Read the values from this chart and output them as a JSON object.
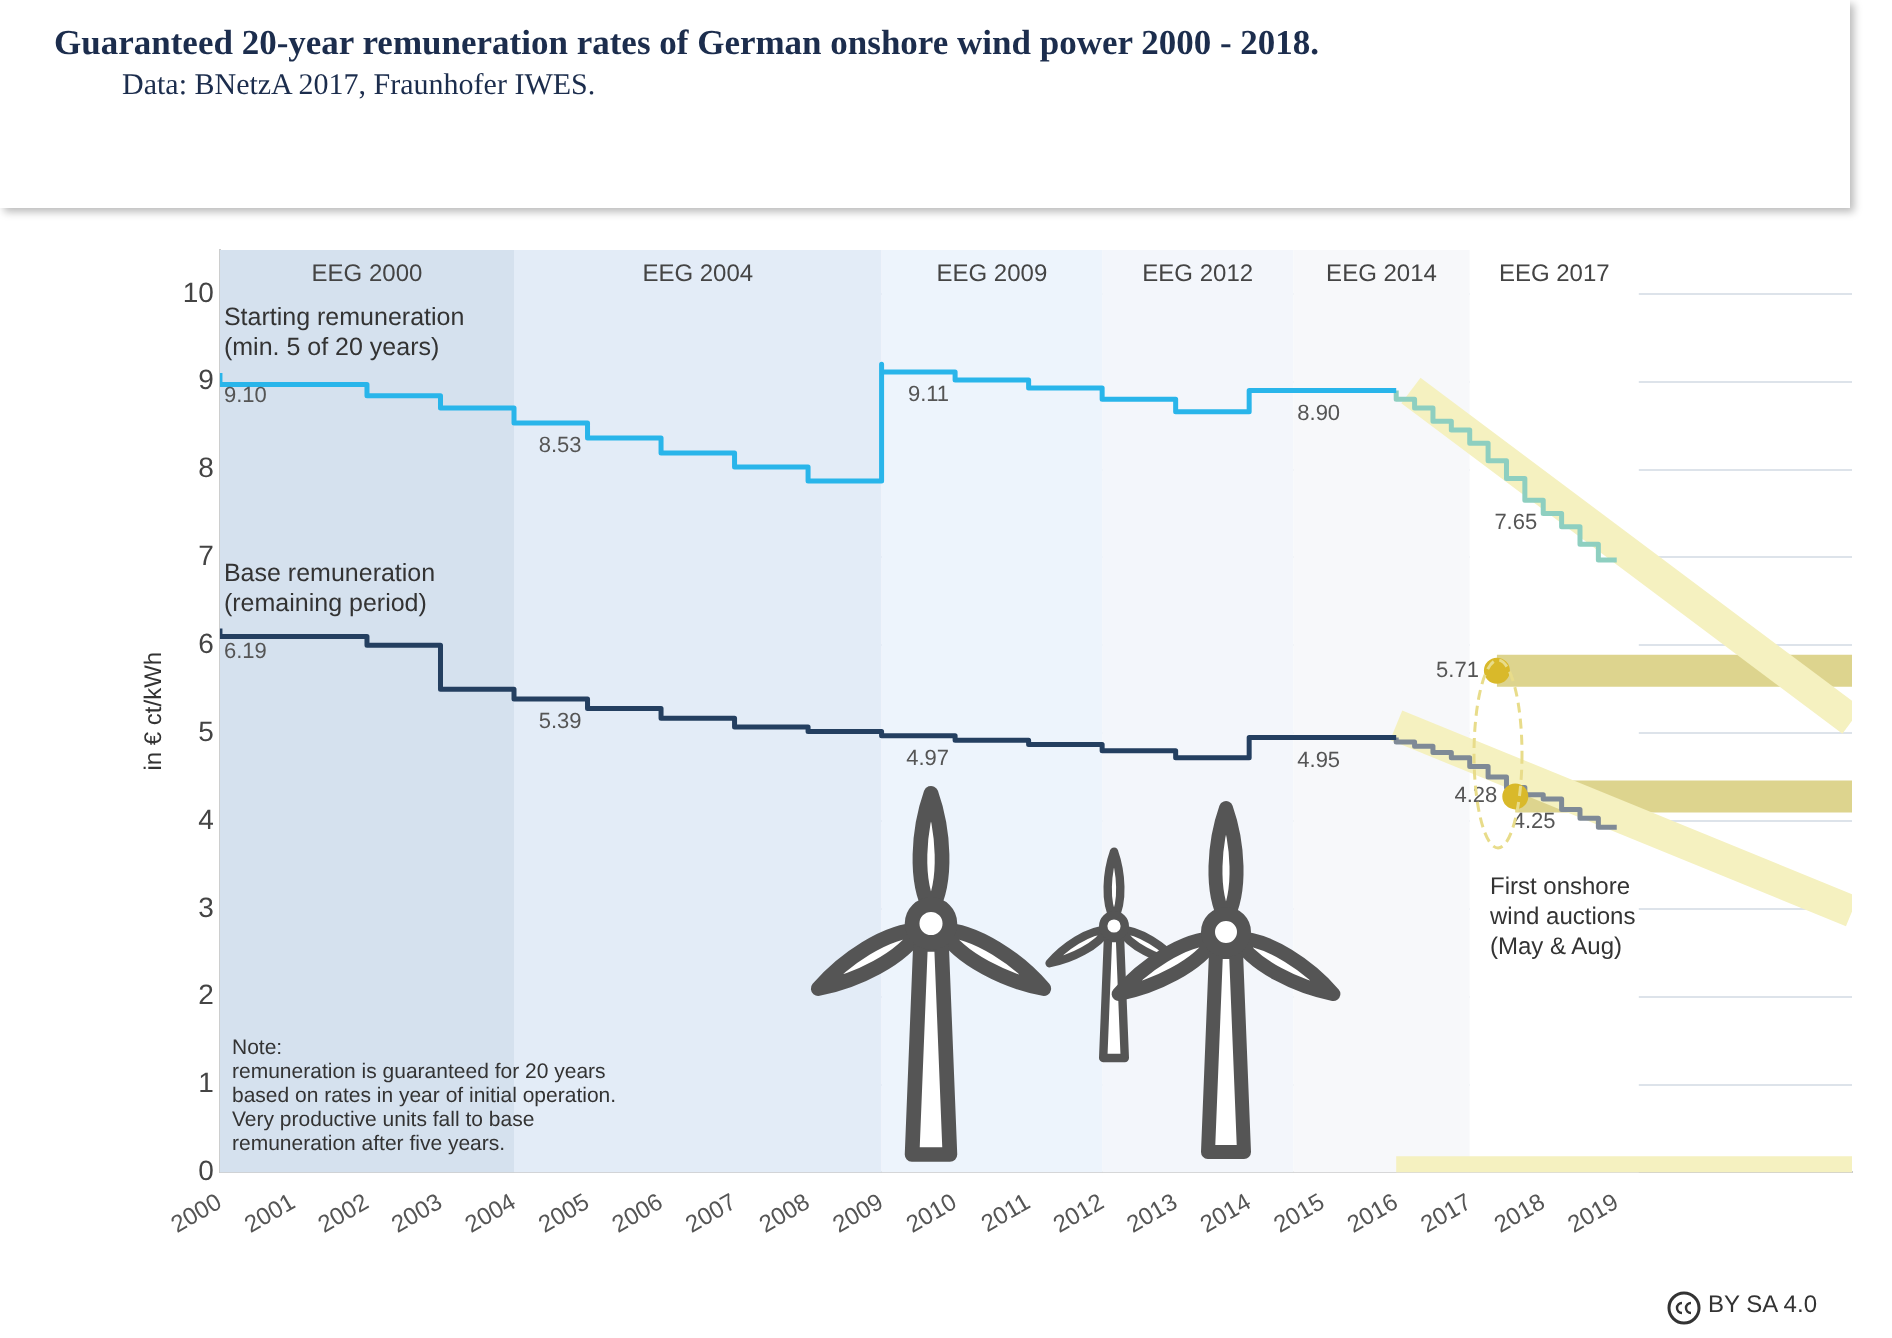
{
  "chart_data": {
    "type": "step",
    "title": "Guaranteed 20-year remuneration rates of German onshore wind power 2000 - 2018.",
    "subtitle": "Data: BNetzA 2017, Fraunhofer IWES.",
    "ylabel": "in € ct/kWh",
    "xlim": [
      2000,
      2022.2
    ],
    "xticks": [
      2000,
      2001,
      2002,
      2003,
      2004,
      2005,
      2006,
      2007,
      2008,
      2009,
      2010,
      2011,
      2012,
      2013,
      2014,
      2015,
      2016,
      2017,
      2018,
      2019
    ],
    "ylim": [
      0,
      10.5
    ],
    "yticks": [
      0,
      1,
      2,
      3,
      4,
      5,
      6,
      7,
      8,
      9,
      10
    ],
    "grid": "y",
    "legend": false,
    "bands": [
      {
        "axis": "x",
        "from": 2000,
        "to": 2004,
        "label": "EEG 2000",
        "color": "#d5e1ee"
      },
      {
        "axis": "x",
        "from": 2004,
        "to": 2009,
        "label": "EEG 2004",
        "color": "#e3ecf7"
      },
      {
        "axis": "x",
        "from": 2009,
        "to": 2012,
        "label": "EEG 2009",
        "color": "#edf4fc"
      },
      {
        "axis": "x",
        "from": 2012,
        "to": 2014.6,
        "label": "EEG 2012",
        "color": "#f3f6fb"
      },
      {
        "axis": "x",
        "from": 2014.6,
        "to": 2017,
        "label": "EEG 2014",
        "color": "#f7f8fa"
      },
      {
        "axis": "x",
        "from": 2017,
        "to": 2019.3,
        "label": "EEG 2017",
        "color": "#ffffff"
      }
    ],
    "series": [
      {
        "type": "line",
        "color": "#f5f1c0",
        "x": [
          2016.2,
          2022.2
        ],
        "values": [
          8.9,
          5.14
        ]
      },
      {
        "type": "line",
        "color": "#f5f1c0",
        "x": [
          2016,
          2022.2
        ],
        "values": [
          5.09,
          2.97
        ]
      },
      {
        "type": "line",
        "color": "#f5f1c0",
        "x": [
          2016,
          2022.2
        ],
        "values": [
          0,
          0
        ]
      },
      {
        "type": "line",
        "color": "#ddd48e",
        "x": [
          2017.37,
          2022.2
        ],
        "values": [
          5.71,
          5.71
        ]
      },
      {
        "type": "line",
        "color": "#ddd48e",
        "x": [
          2017.62,
          2022.2
        ],
        "values": [
          4.28,
          4.28
        ]
      },
      {
        "name": "Starting remuneration (min. 5 of 20 years)",
        "color": "#29b5ea",
        "x": [
          2000,
          2002,
          2003,
          2004,
          2005,
          2006,
          2007,
          2008,
          2009,
          2009,
          2010,
          2011,
          2012,
          2013,
          2014,
          2014.6,
          2016
        ],
        "values": [
          9.1,
          8.97,
          8.84,
          8.7,
          8.53,
          8.36,
          8.19,
          8.03,
          7.87,
          9.2,
          9.11,
          9.02,
          8.93,
          8.8,
          8.66,
          8.9,
          8.9
        ],
        "value_labels": [
          "9.10",
          null,
          null,
          null,
          "8.53",
          null,
          null,
          null,
          null,
          null,
          "9.11",
          null,
          null,
          null,
          null,
          "8.90",
          null
        ]
      },
      {
        "name": "Base remuneration (remaining period)",
        "color": "#243f60",
        "x": [
          2000,
          2002,
          2003,
          2004,
          2005,
          2006,
          2007,
          2008,
          2009,
          2010,
          2011,
          2012,
          2013,
          2014,
          2014.6,
          2016
        ],
        "values": [
          6.19,
          6.1,
          6.0,
          5.5,
          5.39,
          5.28,
          5.17,
          5.07,
          5.02,
          4.97,
          4.92,
          4.87,
          4.8,
          4.72,
          4.95,
          4.95
        ],
        "value_labels": [
          "6.19",
          null,
          null,
          null,
          "5.39",
          null,
          null,
          null,
          null,
          "4.97",
          null,
          null,
          null,
          null,
          "4.95",
          null
        ]
      },
      {
        "color": "#8ecfc0",
        "x": [
          2016,
          2016.25,
          2016.5,
          2016.75,
          2017,
          2017.25,
          2017.5,
          2017.75,
          2018,
          2018.25,
          2018.5,
          2018.75,
          2019
        ],
        "values": [
          8.9,
          8.8,
          8.7,
          8.55,
          8.45,
          8.3,
          8.1,
          7.9,
          7.65,
          7.5,
          7.35,
          7.15,
          6.97
        ],
        "value_labels": [
          null,
          null,
          null,
          null,
          null,
          null,
          null,
          null,
          "7.65",
          null,
          null,
          null,
          null
        ]
      },
      {
        "color": "#7f8a96",
        "x": [
          2016,
          2016.25,
          2016.5,
          2016.75,
          2017,
          2017.25,
          2017.5,
          2017.75,
          2018,
          2018.25,
          2018.5,
          2018.75,
          2019
        ],
        "values": [
          4.95,
          4.9,
          4.85,
          4.78,
          4.72,
          4.62,
          4.5,
          4.38,
          4.3,
          4.25,
          4.13,
          4.03,
          3.93
        ],
        "value_labels": [
          null,
          null,
          null,
          null,
          null,
          null,
          null,
          null,
          null,
          "4.25",
          null,
          null,
          null
        ]
      },
      {
        "type": "scatter",
        "color": "#d9b92a",
        "x": [
          2017.37,
          2017.62
        ],
        "values": [
          5.71,
          4.28
        ],
        "value_labels": [
          "5.71",
          "4.28"
        ]
      }
    ],
    "annotations": [
      "Note:\nremuneration is guaranteed for 20 years\nbased on rates in year of initial operation.\nVery productive units fall to base\nremuneration after five years.",
      "First onshore\nwind auctions\n(May & Aug)",
      "BY SA 4.0"
    ]
  }
}
